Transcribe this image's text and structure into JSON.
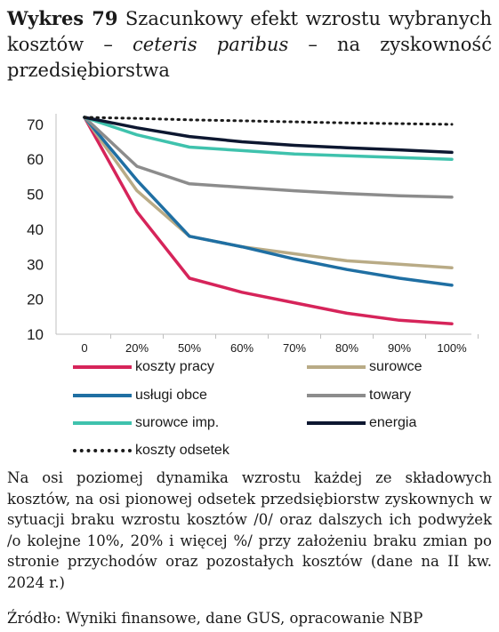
{
  "title": {
    "label": "Wykres 79",
    "part1": "Szacunkowy efekt wzrostu wybranych kosztów –",
    "italic": "ceteris paribus",
    "part2": "– na zyskowność przedsiębiorstwa"
  },
  "chart_data": {
    "type": "line",
    "title": "Wykres 79 Szacunkowy efekt wzrostu wybranych kosztów – ceteris paribus – na zyskowność przedsiębiorstwa",
    "x": [
      "0",
      "20%",
      "50%",
      "60%",
      "70%",
      "80%",
      "90%",
      "100%"
    ],
    "ylim": [
      10,
      72
    ],
    "yticks": [
      10,
      20,
      30,
      40,
      50,
      60,
      70
    ],
    "grid": false,
    "legend_position": "bottom",
    "series": [
      {
        "name": "koszty pracy",
        "color": "#d6245a",
        "style": "solid",
        "values": [
          72,
          45,
          26,
          22,
          19,
          16,
          14,
          13
        ]
      },
      {
        "name": "surowce",
        "color": "#b9ab86",
        "style": "solid",
        "values": [
          72,
          51,
          38,
          35,
          33,
          31,
          30,
          29
        ]
      },
      {
        "name": "usługi obce",
        "color": "#1f6fa3",
        "style": "solid",
        "values": [
          72,
          54,
          38,
          35,
          31.5,
          28.5,
          26,
          24
        ]
      },
      {
        "name": "towary",
        "color": "#8c8c8c",
        "style": "solid",
        "values": [
          72,
          58,
          53,
          52,
          51,
          50.2,
          49.6,
          49.2
        ]
      },
      {
        "name": "surowce imp.",
        "color": "#3fc2ad",
        "style": "solid",
        "values": [
          72,
          67,
          63.5,
          62.5,
          61.5,
          61,
          60.5,
          60
        ]
      },
      {
        "name": "energia",
        "color": "#0d1730",
        "style": "solid",
        "values": [
          72,
          69,
          66.5,
          65,
          64,
          63.3,
          62.7,
          62
        ]
      },
      {
        "name": "koszty odsetek",
        "color": "#1a1a1a",
        "style": "dotted",
        "values": [
          72,
          71.7,
          71.3,
          71,
          70.7,
          70.4,
          70.2,
          70
        ]
      }
    ]
  },
  "note": "Na osi poziomej dynamika wzrostu każdej ze składowych kosztów, na osi pionowej odsetek przedsiębiorstw zyskownych w sytuacji braku wzrostu kosztów /0/ oraz dalszych ich podwyżek /o kolejne 10%, 20% i więcej %/ przy założeniu braku zmian po stronie przychodów oraz pozostałych kosztów (dane na II kw. 2024 r.)",
  "source": "Źródło: Wyniki finansowe, dane GUS, opracowanie NBP"
}
